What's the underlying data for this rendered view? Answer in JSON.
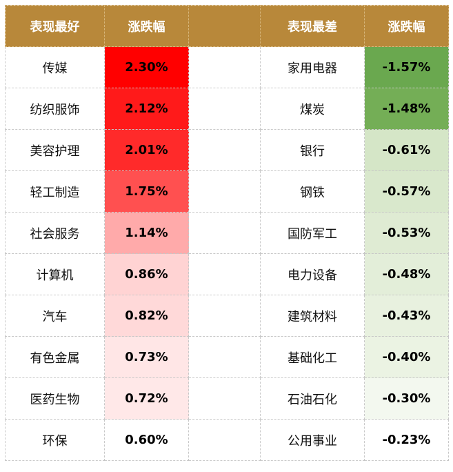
{
  "header": {
    "best_label": "表现最好",
    "best_change_label": "涨跌幅",
    "worst_label": "表现最差",
    "worst_change_label": "涨跌幅"
  },
  "best": [
    {
      "name": "传媒",
      "change": "2.30%",
      "color": "#ff0000"
    },
    {
      "name": "纺织服饰",
      "change": "2.12%",
      "color": "#ff1a1a"
    },
    {
      "name": "美容护理",
      "change": "2.01%",
      "color": "#ff2a2a"
    },
    {
      "name": "轻工制造",
      "change": "1.75%",
      "color": "#ff5050"
    },
    {
      "name": "社会服务",
      "change": "1.14%",
      "color": "#ffaaaa"
    },
    {
      "name": "计算机",
      "change": "0.86%",
      "color": "#ffd3d3"
    },
    {
      "name": "汽车",
      "change": "0.82%",
      "color": "#ffd9d9"
    },
    {
      "name": "有色金属",
      "change": "0.73%",
      "color": "#ffe6e6"
    },
    {
      "name": "医药生物",
      "change": "0.72%",
      "color": "#ffe8e8"
    },
    {
      "name": "环保",
      "change": "0.60%",
      "color": "#ffffff"
    }
  ],
  "worst": [
    {
      "name": "家用电器",
      "change": "-1.57%",
      "color": "#6aa84f"
    },
    {
      "name": "煤炭",
      "change": "-1.48%",
      "color": "#74ae56"
    },
    {
      "name": "银行",
      "change": "-0.61%",
      "color": "#d5e6c7"
    },
    {
      "name": "钢铁",
      "change": "-0.57%",
      "color": "#d9e8cc"
    },
    {
      "name": "国防军工",
      "change": "-0.53%",
      "color": "#dfebd3"
    },
    {
      "name": "电力设备",
      "change": "-0.48%",
      "color": "#e3eed9"
    },
    {
      "name": "建筑材料",
      "change": "-0.43%",
      "color": "#e8f1df"
    },
    {
      "name": "基础化工",
      "change": "-0.40%",
      "color": "#ebf3e3"
    },
    {
      "name": "石油石化",
      "change": "-0.30%",
      "color": "#f3f8ef"
    },
    {
      "name": "公用事业",
      "change": "-0.23%",
      "color": "#ffffff"
    }
  ]
}
